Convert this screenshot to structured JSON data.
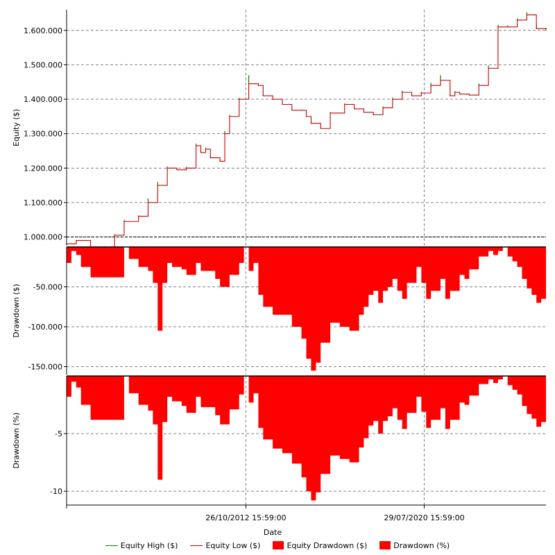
{
  "chart_data": [
    {
      "type": "line",
      "ylabel": "Equity ($)",
      "ylim": [
        975000,
        1660000
      ],
      "yticks": [
        1000000,
        1100000,
        1200000,
        1300000,
        1400000,
        1500000,
        1600000
      ],
      "ytick_labels": [
        "1.000.000",
        "1.100.000",
        "1.200.000",
        "1.300.000",
        "1.400.000",
        "1.500.000",
        "1.600.000"
      ],
      "reference_line": 1000000,
      "series": [
        {
          "name": "Equity High ($)",
          "color": "#008000"
        },
        {
          "name": "Equity Low ($)",
          "color": "#c00000"
        }
      ],
      "x": [
        0,
        2,
        5,
        8,
        10,
        12,
        15,
        17,
        19,
        21,
        23,
        25,
        27,
        28,
        29,
        30,
        32,
        33,
        34,
        36,
        38,
        40,
        41,
        43,
        45,
        47,
        49,
        50,
        51,
        53,
        55,
        58,
        60,
        62,
        64,
        66,
        68,
        70,
        72,
        74,
        76,
        78,
        80,
        81,
        82,
        84,
        86,
        88,
        90,
        92,
        94,
        96,
        98,
        100
      ],
      "values": [
        980000,
        990000,
        965000,
        968000,
        1005000,
        1045000,
        1060000,
        1100000,
        1150000,
        1200000,
        1195000,
        1200000,
        1265000,
        1245000,
        1255000,
        1230000,
        1220000,
        1300000,
        1350000,
        1400000,
        1445000,
        1440000,
        1410000,
        1400000,
        1385000,
        1368000,
        1368000,
        1350000,
        1330000,
        1315000,
        1360000,
        1385000,
        1372000,
        1362000,
        1355000,
        1375000,
        1400000,
        1420000,
        1410000,
        1418000,
        1440000,
        1455000,
        1410000,
        1420000,
        1415000,
        1412000,
        1440000,
        1490000,
        1610000,
        1610000,
        1630000,
        1645000,
        1605000,
        1600000
      ],
      "high_spikes": [
        0,
        0,
        0,
        5000,
        3000,
        5000,
        3000,
        12000,
        10000,
        5000,
        3000,
        4000,
        6000,
        5000,
        5000,
        4000,
        3000,
        8000,
        5000,
        4000,
        25000,
        4000,
        3000,
        2000,
        2000,
        2000,
        2000,
        3000,
        4000,
        2000,
        3000,
        3000,
        2000,
        2000,
        2000,
        4000,
        5000,
        5000,
        3000,
        4000,
        8000,
        15000,
        5000,
        4000,
        3000,
        3000,
        6000,
        8000,
        6000,
        4000,
        5000,
        8000,
        12000,
        8000
      ]
    },
    {
      "type": "area",
      "name": "Equity Drawdown ($)",
      "ylabel": "Drawdown ($)",
      "color": "#ff0000",
      "ylim": [
        -160000,
        0
      ],
      "yticks": [
        -50000,
        -100000,
        -150000
      ],
      "ytick_labels": [
        "-50.000",
        "-100.000",
        "-150.000"
      ],
      "x": [
        0,
        1,
        2,
        3,
        5,
        8,
        12,
        13,
        15,
        17,
        18,
        19,
        20,
        21,
        22,
        24,
        25,
        27,
        28,
        29,
        31,
        32,
        34,
        36,
        37,
        38,
        39,
        40,
        41,
        43,
        45,
        47,
        49,
        50,
        51,
        52,
        53,
        55,
        57,
        59,
        61,
        62,
        63,
        64,
        65,
        66,
        67,
        68,
        69,
        70,
        71,
        73,
        74,
        75,
        76,
        77,
        78,
        79,
        80,
        82,
        83,
        84,
        86,
        88,
        89,
        90,
        91,
        92,
        93,
        94,
        95,
        96,
        97,
        98,
        99,
        100
      ],
      "values": [
        -20000,
        -5000,
        -10000,
        -25000,
        -38000,
        -38000,
        0,
        -15000,
        -25000,
        -30000,
        -45000,
        -105000,
        -45000,
        -20000,
        -25000,
        -28000,
        -35000,
        -20000,
        -30000,
        -30000,
        -40000,
        -50000,
        -35000,
        -20000,
        0,
        -30000,
        -20000,
        -60000,
        -75000,
        -85000,
        -85000,
        -100000,
        -115000,
        -140000,
        -155000,
        -145000,
        -120000,
        -95000,
        -100000,
        -105000,
        -85000,
        -75000,
        -60000,
        -55000,
        -70000,
        -55000,
        -50000,
        -40000,
        -55000,
        -65000,
        -45000,
        -25000,
        -45000,
        -65000,
        -55000,
        -55000,
        -40000,
        -65000,
        -55000,
        -35000,
        -40000,
        -28000,
        -12000,
        -5000,
        -10000,
        -5000,
        0,
        -12000,
        -18000,
        -25000,
        -40000,
        -52000,
        -60000,
        -70000,
        -65000,
        -55000
      ]
    },
    {
      "type": "area",
      "name": "Drawdown (%)",
      "ylabel": "Drawdown (%)",
      "color": "#ff0000",
      "ylim": [
        -11.2,
        0
      ],
      "yticks": [
        -5,
        -10
      ],
      "ytick_labels": [
        "-5",
        "-10"
      ],
      "x": [
        0,
        1,
        2,
        3,
        5,
        8,
        12,
        13,
        15,
        17,
        18,
        19,
        20,
        21,
        22,
        24,
        25,
        27,
        28,
        29,
        31,
        32,
        34,
        36,
        37,
        38,
        39,
        40,
        41,
        43,
        45,
        47,
        49,
        50,
        51,
        52,
        53,
        55,
        57,
        59,
        61,
        62,
        63,
        64,
        65,
        66,
        67,
        68,
        69,
        70,
        71,
        73,
        74,
        75,
        76,
        77,
        78,
        79,
        80,
        82,
        83,
        84,
        86,
        88,
        89,
        90,
        91,
        92,
        93,
        94,
        95,
        96,
        97,
        98,
        99,
        100
      ],
      "values": [
        -1.8,
        -0.5,
        -1.0,
        -2.5,
        -3.8,
        -3.8,
        0,
        -1.5,
        -2.5,
        -3.0,
        -4.2,
        -9.0,
        -4.0,
        -1.8,
        -2.2,
        -2.6,
        -3.2,
        -1.8,
        -2.7,
        -2.7,
        -3.4,
        -4.2,
        -2.9,
        -1.6,
        0,
        -2.3,
        -1.5,
        -4.5,
        -5.5,
        -6.3,
        -6.7,
        -7.6,
        -8.8,
        -10.0,
        -10.8,
        -10.1,
        -8.5,
        -6.9,
        -7.2,
        -7.5,
        -6.2,
        -5.4,
        -4.3,
        -3.9,
        -5.0,
        -3.9,
        -3.5,
        -2.8,
        -3.8,
        -4.6,
        -3.2,
        -1.8,
        -3.1,
        -4.5,
        -3.8,
        -3.8,
        -2.8,
        -4.6,
        -3.8,
        -2.3,
        -2.5,
        -1.7,
        -0.7,
        -0.3,
        -0.6,
        -0.3,
        0,
        -0.8,
        -1.2,
        -1.6,
        -2.6,
        -3.3,
        -3.7,
        -4.4,
        -4.0,
        -3.4
      ]
    }
  ],
  "x_axis": {
    "label": "Date",
    "tick_labels": [
      "26/10/2012 15:59:00",
      "29/07/2020 15:59:00"
    ],
    "tick_positions": [
      37.4,
      74.6
    ]
  },
  "legend": [
    {
      "label": "Equity High ($)",
      "color": "#008000",
      "kind": "line"
    },
    {
      "label": "Equity Low ($)",
      "color": "#c00000",
      "kind": "line"
    },
    {
      "label": "Equity Drawdown ($)",
      "color": "#ff0000",
      "kind": "box"
    },
    {
      "label": "Drawdown (%)",
      "color": "#ff0000",
      "kind": "box"
    }
  ]
}
